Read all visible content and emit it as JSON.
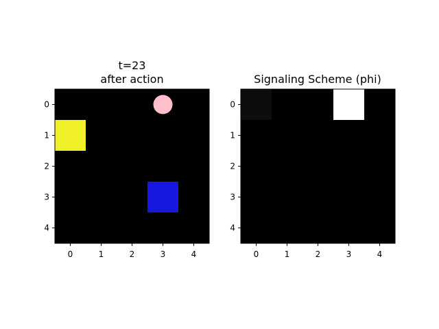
{
  "figure": {
    "background": "#ffffff"
  },
  "grid_size": 5,
  "tick_labels": [
    "0",
    "1",
    "2",
    "3",
    "4"
  ],
  "panels": [
    {
      "id": "env",
      "title_line1": "t=23",
      "title_line2": "after action",
      "background": "#000000",
      "objects": [
        {
          "kind": "square",
          "row": 1,
          "col": 0,
          "color": "#f0f028",
          "name": "yellow-square"
        },
        {
          "kind": "square",
          "row": 3,
          "col": 3,
          "color": "#1717e0",
          "name": "blue-square"
        },
        {
          "kind": "circle",
          "row": 0,
          "col": 3,
          "color": "#ffc0cb",
          "name": "pink-circle"
        }
      ]
    },
    {
      "id": "phi",
      "title_line1": "Signaling Scheme (phi)",
      "title_line2": "",
      "background": "#000000",
      "cells": [
        {
          "row": 0,
          "col": 0,
          "color": "#0d0d0d"
        },
        {
          "row": 0,
          "col": 3,
          "color": "#ffffff"
        }
      ]
    }
  ]
}
